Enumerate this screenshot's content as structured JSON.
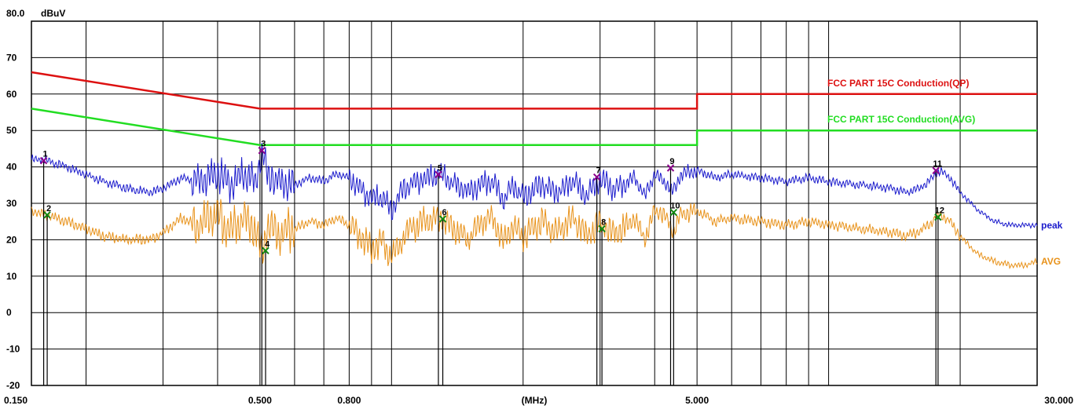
{
  "chart_data": {
    "type": "line",
    "ylabel": "dBuV",
    "xlabel": "(MHz)",
    "x_scale": "log",
    "xlim": [
      0.15,
      30
    ],
    "ylim": [
      -20,
      80
    ],
    "grid": true,
    "y_ticks": [
      {
        "v": 80,
        "label": "80.0"
      },
      {
        "v": 70,
        "label": "70"
      },
      {
        "v": 60,
        "label": "60"
      },
      {
        "v": 50,
        "label": "50"
      },
      {
        "v": 40,
        "label": "40"
      },
      {
        "v": 30,
        "label": "30"
      },
      {
        "v": 20,
        "label": "20"
      },
      {
        "v": 10,
        "label": "10"
      },
      {
        "v": 0,
        "label": "0"
      },
      {
        "v": -10,
        "label": "-10"
      },
      {
        "v": -20,
        "label": "-20"
      }
    ],
    "x_ticks": [
      {
        "v": 0.15,
        "label": "0.150"
      },
      {
        "v": 0.5,
        "label": "0.500"
      },
      {
        "v": 0.8,
        "label": "0.800"
      },
      {
        "v": 5,
        "label": "5.000"
      },
      {
        "v": 30,
        "label": "30.000"
      }
    ],
    "x_gridlines": [
      0.2,
      0.3,
      0.4,
      0.5,
      0.6,
      0.7,
      0.8,
      0.9,
      1,
      2,
      3,
      4,
      5,
      6,
      7,
      8,
      9,
      10,
      20,
      30
    ],
    "limits": [
      {
        "name": "FCC PART 15C  Conduction(QP)",
        "color": "#dd1111",
        "points": [
          [
            0.15,
            66
          ],
          [
            0.5,
            56
          ],
          [
            5,
            56
          ],
          [
            5,
            60
          ],
          [
            30,
            60
          ]
        ]
      },
      {
        "name": "FCC PART 15C Conduction(AVG)",
        "color": "#22dd22",
        "points": [
          [
            0.15,
            56
          ],
          [
            0.5,
            46
          ],
          [
            5,
            46
          ],
          [
            5,
            50
          ],
          [
            30,
            50
          ]
        ]
      }
    ],
    "series": [
      {
        "name": "peak",
        "color": "#1a1acc",
        "x": [
          0.15,
          0.16,
          0.17,
          0.18,
          0.2,
          0.22,
          0.25,
          0.28,
          0.3,
          0.33,
          0.36,
          0.4,
          0.43,
          0.46,
          0.49,
          0.505,
          0.52,
          0.55,
          0.6,
          0.65,
          0.7,
          0.75,
          0.8,
          0.85,
          0.9,
          0.95,
          1.0,
          1.05,
          1.1,
          1.2,
          1.3,
          1.4,
          1.5,
          1.6,
          1.7,
          1.8,
          1.9,
          2.0,
          2.2,
          2.4,
          2.6,
          2.8,
          3.0,
          3.2,
          3.4,
          3.6,
          3.8,
          4.0,
          4.2,
          4.4,
          4.6,
          5.0,
          5.5,
          6.0,
          7.0,
          8.0,
          9.0,
          10.0,
          12.0,
          14.0,
          15.0,
          16.0,
          17.0,
          17.5,
          18.0,
          18.5,
          19.0,
          20.0,
          22.0,
          24.0,
          26.0,
          28.0,
          30.0
        ],
        "values": [
          42,
          42,
          41,
          40,
          38,
          36,
          34,
          33,
          34,
          37,
          36,
          38,
          35,
          38,
          36,
          44,
          38,
          36,
          35,
          37,
          36,
          38,
          37,
          34,
          31,
          32,
          28,
          33,
          35,
          37,
          38,
          35,
          33,
          35,
          36,
          31,
          35,
          32,
          35,
          33,
          36,
          32,
          37,
          34,
          35,
          37,
          32,
          38,
          36,
          33,
          38,
          39,
          37,
          38,
          37,
          36,
          37,
          36,
          35,
          34,
          33,
          34,
          36,
          38,
          39,
          38,
          37,
          33,
          28,
          25,
          24,
          24,
          24
        ]
      },
      {
        "name": "AVG",
        "color": "#e8921a",
        "x": [
          0.15,
          0.16,
          0.17,
          0.18,
          0.2,
          0.22,
          0.25,
          0.28,
          0.3,
          0.33,
          0.36,
          0.4,
          0.43,
          0.46,
          0.49,
          0.505,
          0.52,
          0.55,
          0.6,
          0.65,
          0.7,
          0.75,
          0.8,
          0.85,
          0.9,
          0.95,
          1.0,
          1.05,
          1.1,
          1.2,
          1.3,
          1.4,
          1.5,
          1.6,
          1.7,
          1.8,
          1.9,
          2.0,
          2.2,
          2.4,
          2.6,
          2.8,
          3.0,
          3.2,
          3.4,
          3.6,
          3.8,
          4.0,
          4.2,
          4.4,
          4.6,
          5.0,
          5.5,
          6.0,
          7.0,
          8.0,
          9.0,
          10.0,
          12.0,
          14.0,
          15.0,
          16.0,
          17.0,
          17.5,
          18.0,
          18.5,
          19.0,
          20.0,
          22.0,
          24.0,
          26.0,
          28.0,
          30.0
        ],
        "values": [
          28,
          27,
          26,
          25,
          23,
          21,
          20,
          20,
          22,
          26,
          24,
          27,
          22,
          26,
          22,
          17,
          24,
          22,
          23,
          25,
          24,
          26,
          24,
          21,
          17,
          20,
          15,
          19,
          23,
          25,
          26,
          23,
          20,
          25,
          26,
          19,
          24,
          21,
          25,
          22,
          26,
          21,
          25,
          22,
          23,
          26,
          20,
          28,
          27,
          22,
          27,
          28,
          25,
          26,
          25,
          24,
          25,
          24,
          23,
          22,
          21,
          22,
          24,
          26,
          27,
          26,
          25,
          21,
          16,
          14,
          13,
          13,
          14
        ]
      }
    ],
    "markers": [
      {
        "n": "1",
        "x": 0.16,
        "y": 41.7,
        "kind": "peak"
      },
      {
        "n": "2",
        "x": 0.163,
        "y": 26.8,
        "kind": "avg"
      },
      {
        "n": "3",
        "x": 0.505,
        "y": 44.5,
        "kind": "peak"
      },
      {
        "n": "4",
        "x": 0.515,
        "y": 17.0,
        "kind": "avg"
      },
      {
        "n": "5",
        "x": 1.28,
        "y": 37.9,
        "kind": "peak"
      },
      {
        "n": "6",
        "x": 1.31,
        "y": 25.7,
        "kind": "avg"
      },
      {
        "n": "7",
        "x": 2.95,
        "y": 37.2,
        "kind": "peak"
      },
      {
        "n": "8",
        "x": 3.03,
        "y": 23.0,
        "kind": "avg"
      },
      {
        "n": "9",
        "x": 4.35,
        "y": 39.7,
        "kind": "peak"
      },
      {
        "n": "10",
        "x": 4.42,
        "y": 27.5,
        "kind": "avg"
      },
      {
        "n": "11",
        "x": 17.6,
        "y": 39.0,
        "kind": "peak"
      },
      {
        "n": "12",
        "x": 17.8,
        "y": 26.2,
        "kind": "avg"
      }
    ],
    "colors": {
      "peak_marker": "#8b008b",
      "avg_marker": "#118811"
    }
  }
}
